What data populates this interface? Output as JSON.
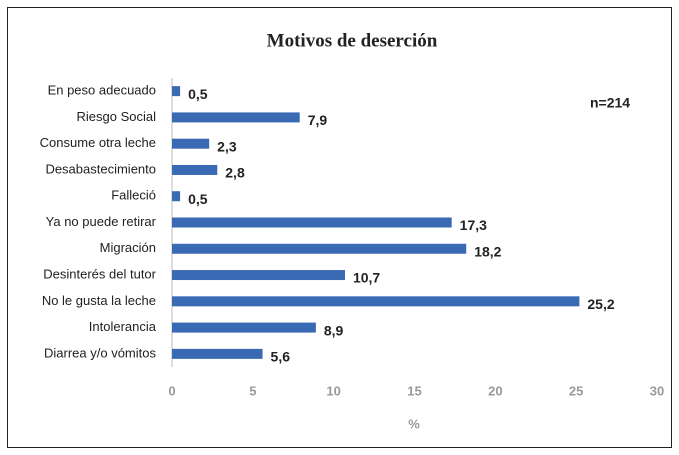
{
  "chart_data": {
    "type": "bar",
    "orientation": "horizontal",
    "title": "Motivos de deserción",
    "categories": [
      "En peso adecuado",
      "Riesgo Social",
      "Consume otra leche",
      "Desabastecimiento",
      "Falleció",
      "Ya no puede retirar",
      "Migración",
      "Desinterés del tutor",
      "No le gusta la leche",
      "Intolerancia",
      "Diarrea y/o vómitos"
    ],
    "values": [
      0.5,
      7.9,
      2.3,
      2.8,
      0.5,
      17.3,
      18.2,
      10.7,
      25.2,
      8.9,
      5.6
    ],
    "value_labels": [
      "0,5",
      "7,9",
      "2,3",
      "2,8",
      "0,5",
      "17,3",
      "18,2",
      "10,7",
      "25,2",
      "8,9",
      "5,6"
    ],
    "color": "#3a6ab4",
    "xlim": [
      0,
      30
    ],
    "xticks": [
      0,
      5,
      10,
      15,
      20,
      25,
      30
    ],
    "xlabel": "%",
    "annotation": "n=214"
  }
}
